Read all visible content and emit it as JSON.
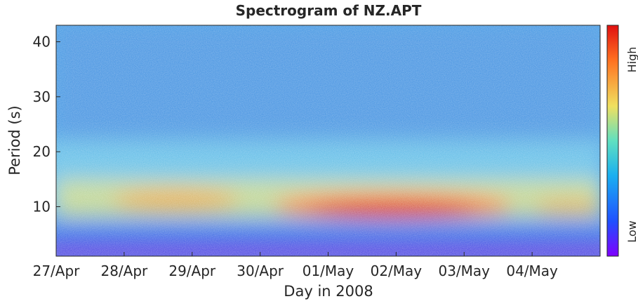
{
  "chart_data": {
    "type": "heatmap",
    "title": "Spectrogram of NZ.APT",
    "x_label": "Day in 2008",
    "y_label": "Period (s)",
    "categories": [
      "27/Apr",
      "28/Apr",
      "29/Apr",
      "30/Apr",
      "01/May",
      "02/May",
      "03/May",
      "04/May"
    ],
    "ylim": [
      1,
      43
    ],
    "yticks": [
      10,
      20,
      30,
      40
    ],
    "colorbar_labels": [
      "Low",
      "High"
    ]
  }
}
